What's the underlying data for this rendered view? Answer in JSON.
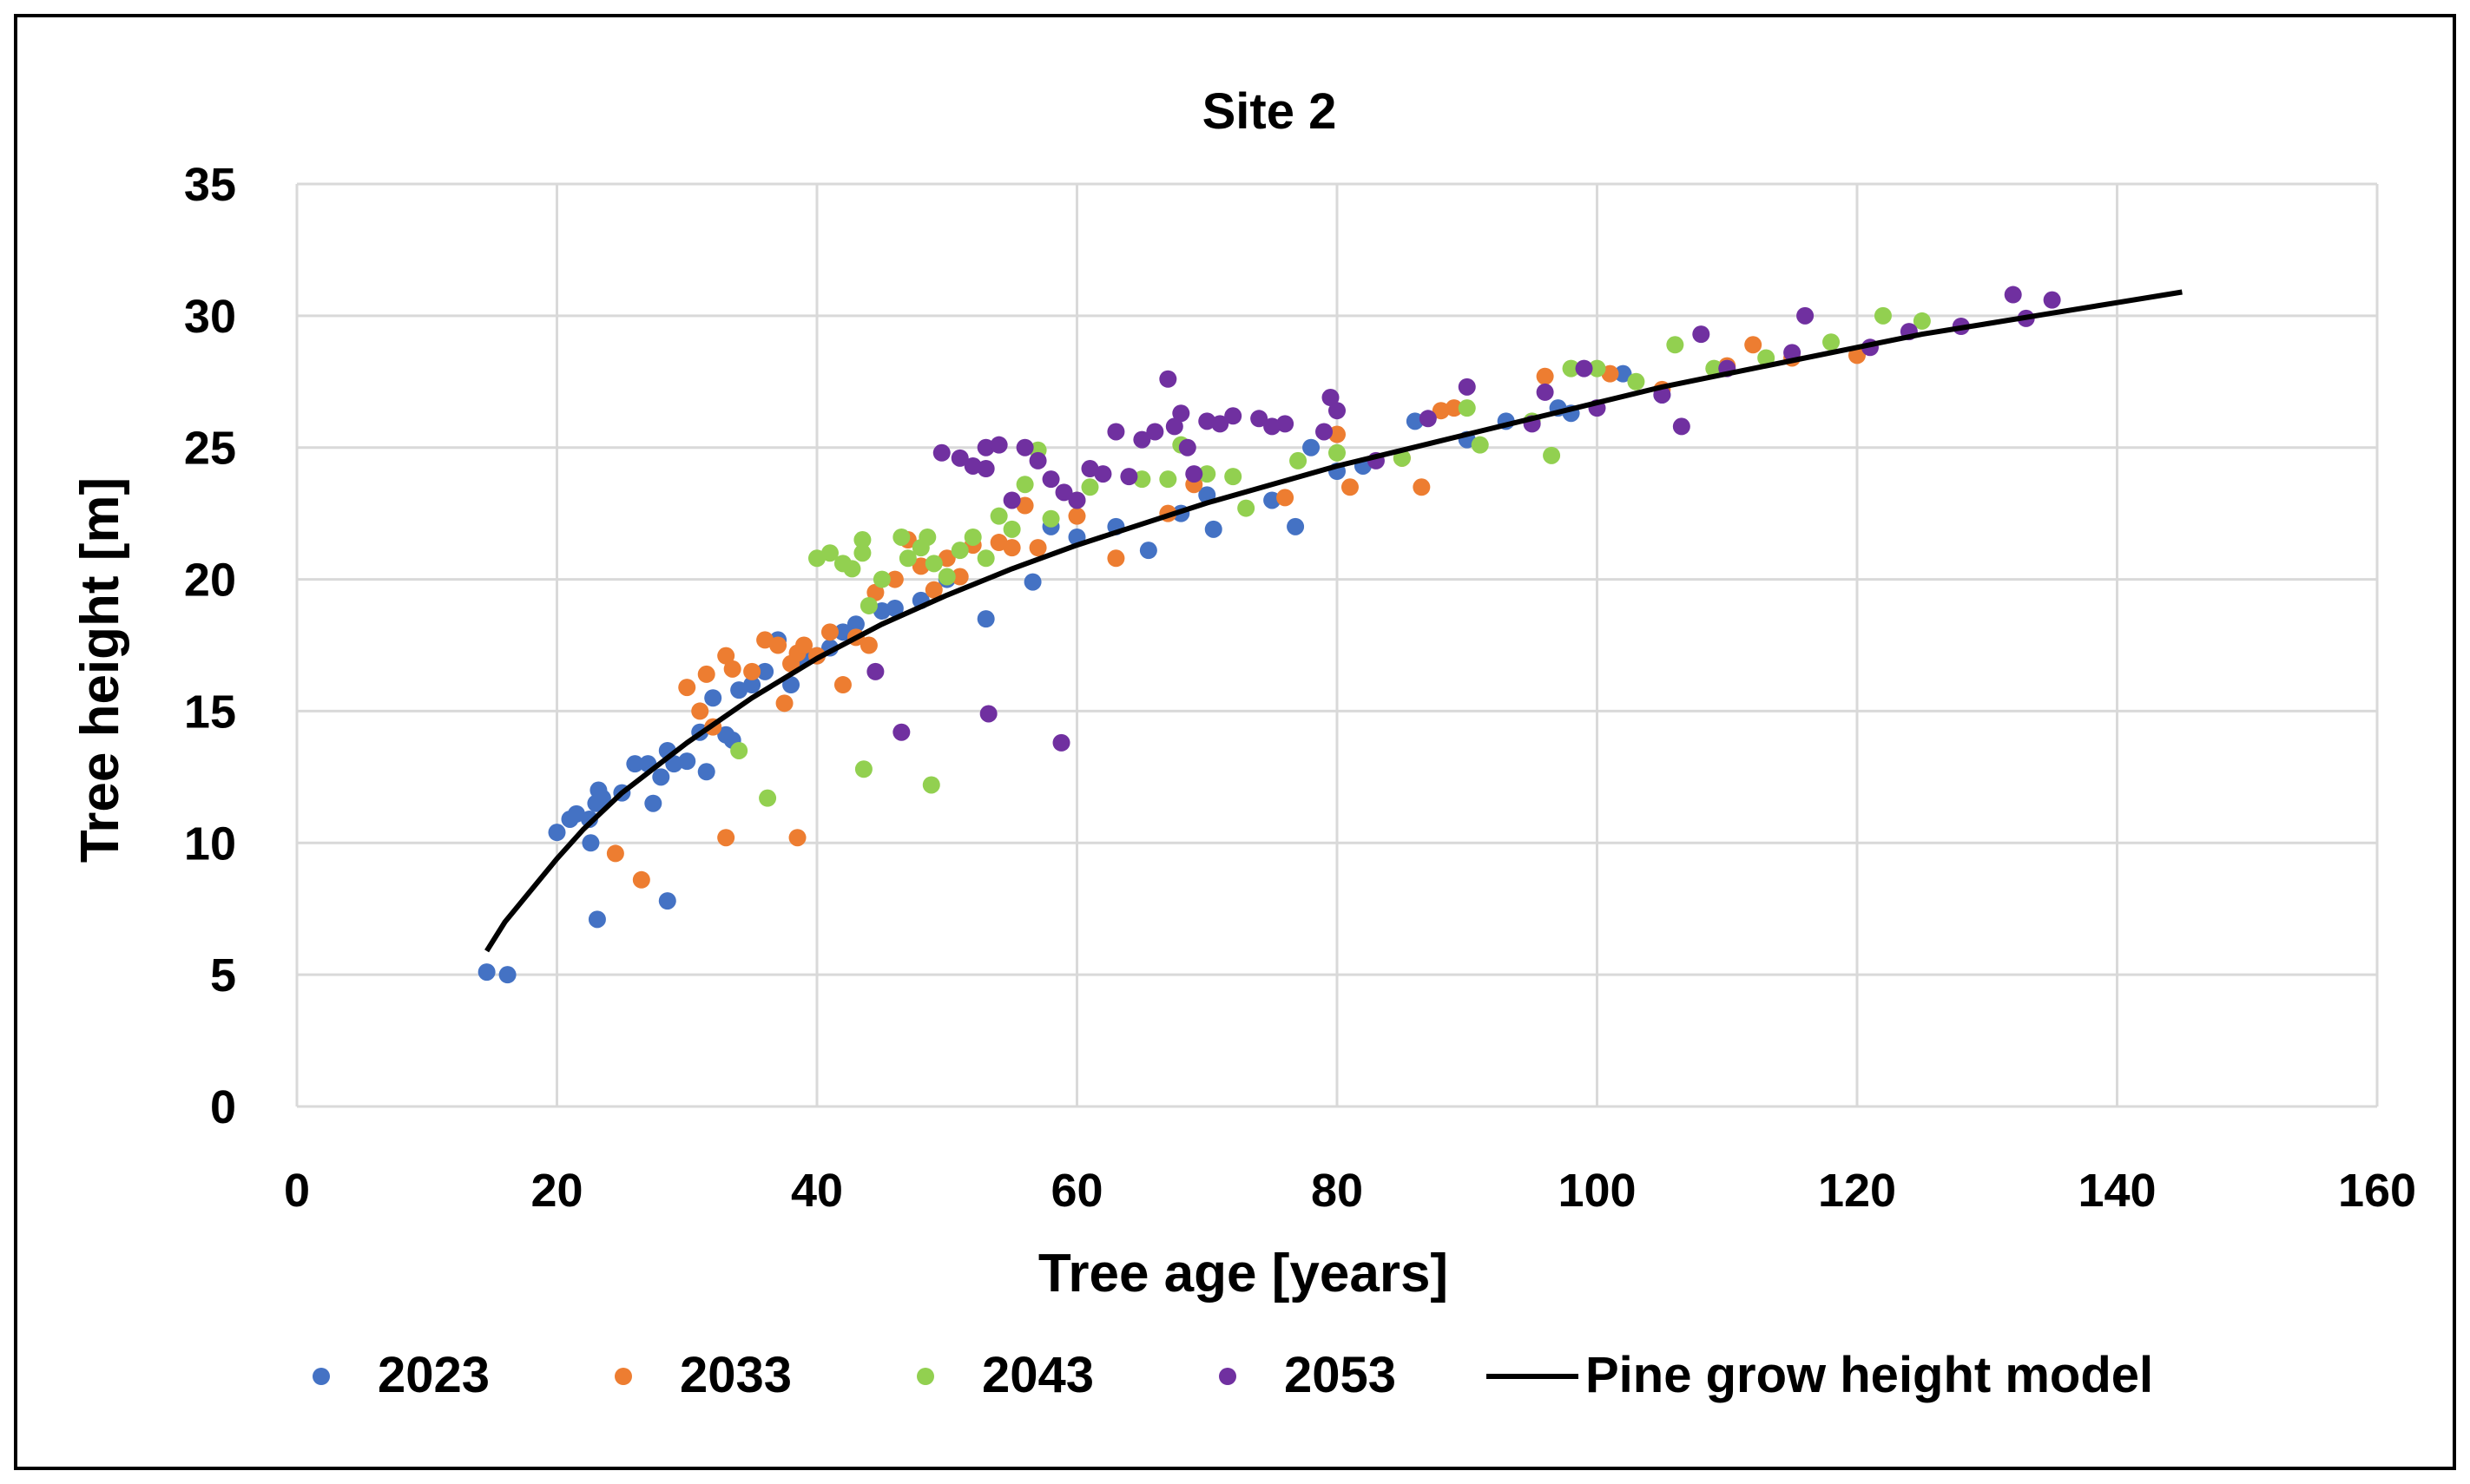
{
  "chart_data": {
    "type": "scatter",
    "title": "Site 2",
    "xlabel": "Tree age [years]",
    "ylabel": "Tree height [m]",
    "xlim": [
      0,
      160
    ],
    "ylim": [
      0,
      35
    ],
    "xticks": [
      "0",
      "20",
      "40",
      "60",
      "80",
      "100",
      "120",
      "140",
      "160"
    ],
    "yticks": [
      "0",
      "5",
      "10",
      "15",
      "20",
      "25",
      "30",
      "35"
    ],
    "grid": true,
    "legend_position": "bottom",
    "series": [
      {
        "name": "2023",
        "color": "#4472C4",
        "points": [
          [
            14.6,
            5.1
          ],
          [
            16.2,
            5.0
          ],
          [
            20,
            10.4
          ],
          [
            21,
            10.9
          ],
          [
            21.5,
            11.1
          ],
          [
            22.5,
            10.9
          ],
          [
            22.6,
            10.0
          ],
          [
            23,
            11.5
          ],
          [
            23.2,
            12.0
          ],
          [
            23.5,
            11.7
          ],
          [
            23.1,
            7.1
          ],
          [
            25,
            11.9
          ],
          [
            26,
            13.0
          ],
          [
            27,
            13.0
          ],
          [
            27.4,
            11.5
          ],
          [
            28,
            12.5
          ],
          [
            28.5,
            13.5
          ],
          [
            29,
            13.0
          ],
          [
            28.5,
            7.8
          ],
          [
            30,
            13.1
          ],
          [
            31,
            14.2
          ],
          [
            31.5,
            12.7
          ],
          [
            32,
            15.5
          ],
          [
            33,
            14.1
          ],
          [
            33.5,
            13.9
          ],
          [
            34,
            15.8
          ],
          [
            35,
            16.0
          ],
          [
            36,
            16.5
          ],
          [
            37,
            17.7
          ],
          [
            38,
            16.0
          ],
          [
            39,
            17.0
          ],
          [
            40,
            17.1
          ],
          [
            41,
            17.4
          ],
          [
            42,
            18.0
          ],
          [
            43,
            18.3
          ],
          [
            45,
            18.8
          ],
          [
            46,
            18.9
          ],
          [
            48,
            19.2
          ],
          [
            50,
            20.0
          ],
          [
            53,
            18.5
          ],
          [
            56.6,
            19.9
          ],
          [
            58,
            22.0
          ],
          [
            60,
            21.6
          ],
          [
            63,
            22.0
          ],
          [
            65.5,
            21.1
          ],
          [
            68,
            22.5
          ],
          [
            70,
            23.2
          ],
          [
            70.5,
            21.9
          ],
          [
            75,
            23.0
          ],
          [
            76.8,
            22.0
          ],
          [
            78,
            25.0
          ],
          [
            80,
            24.1
          ],
          [
            82,
            24.3
          ],
          [
            86,
            26.0
          ],
          [
            90,
            25.3
          ],
          [
            93,
            26.0
          ],
          [
            97,
            26.5
          ],
          [
            98,
            26.3
          ],
          [
            102,
            27.8
          ],
          [
            105,
            27.0
          ]
        ]
      },
      {
        "name": "2033",
        "color": "#ED7D31",
        "points": [
          [
            24.5,
            9.6
          ],
          [
            26.5,
            8.6
          ],
          [
            30,
            15.9
          ],
          [
            31,
            15.0
          ],
          [
            31.5,
            16.4
          ],
          [
            32,
            14.4
          ],
          [
            33,
            17.1
          ],
          [
            33.5,
            16.6
          ],
          [
            33,
            10.2
          ],
          [
            35,
            16.5
          ],
          [
            36,
            17.7
          ],
          [
            37,
            17.5
          ],
          [
            37.5,
            15.3
          ],
          [
            38,
            16.8
          ],
          [
            38.5,
            10.2
          ],
          [
            38.5,
            17.2
          ],
          [
            39,
            17.5
          ],
          [
            40,
            17.1
          ],
          [
            41,
            18.0
          ],
          [
            42,
            16.0
          ],
          [
            43,
            17.8
          ],
          [
            44,
            17.5
          ],
          [
            44.5,
            19.5
          ],
          [
            46,
            20.0
          ],
          [
            47,
            21.5
          ],
          [
            48,
            20.5
          ],
          [
            49,
            19.6
          ],
          [
            50,
            20.8
          ],
          [
            51,
            20.1
          ],
          [
            52,
            21.3
          ],
          [
            54,
            21.4
          ],
          [
            55,
            21.2
          ],
          [
            56,
            22.8
          ],
          [
            57,
            21.2
          ],
          [
            60,
            22.4
          ],
          [
            63,
            20.8
          ],
          [
            67,
            22.5
          ],
          [
            69,
            23.6
          ],
          [
            76,
            23.1
          ],
          [
            80,
            25.5
          ],
          [
            81,
            23.5
          ],
          [
            85,
            24.6
          ],
          [
            86.5,
            23.5
          ],
          [
            88,
            26.4
          ],
          [
            89,
            26.5
          ],
          [
            96,
            27.7
          ],
          [
            101,
            27.8
          ],
          [
            105,
            27.2
          ],
          [
            110,
            28.1
          ],
          [
            112,
            28.9
          ],
          [
            115,
            28.4
          ],
          [
            120,
            28.5
          ]
        ]
      },
      {
        "name": "2043",
        "color": "#92D050",
        "points": [
          [
            34,
            13.5
          ],
          [
            36.2,
            11.7
          ],
          [
            40,
            20.8
          ],
          [
            41,
            21.0
          ],
          [
            42,
            20.6
          ],
          [
            42.7,
            20.4
          ],
          [
            43.5,
            21.0
          ],
          [
            43.5,
            21.5
          ],
          [
            43.6,
            12.8
          ],
          [
            44,
            19.0
          ],
          [
            45,
            20.0
          ],
          [
            46.5,
            21.6
          ],
          [
            47,
            20.8
          ],
          [
            48,
            21.2
          ],
          [
            48.5,
            21.6
          ],
          [
            48.8,
            12.2
          ],
          [
            49,
            20.6
          ],
          [
            50,
            20.1
          ],
          [
            51,
            21.1
          ],
          [
            52,
            21.6
          ],
          [
            53,
            20.8
          ],
          [
            54,
            22.4
          ],
          [
            55,
            21.9
          ],
          [
            56,
            23.6
          ],
          [
            57,
            24.9
          ],
          [
            58,
            22.3
          ],
          [
            60,
            23.0
          ],
          [
            61,
            23.5
          ],
          [
            65,
            23.8
          ],
          [
            67,
            23.8
          ],
          [
            68,
            25.1
          ],
          [
            70,
            24.0
          ],
          [
            72,
            23.9
          ],
          [
            73,
            22.7
          ],
          [
            77,
            24.5
          ],
          [
            80,
            24.8
          ],
          [
            85,
            24.6
          ],
          [
            90,
            26.5
          ],
          [
            91,
            25.1
          ],
          [
            95,
            26.0
          ],
          [
            96.5,
            24.7
          ],
          [
            98,
            28.0
          ],
          [
            100,
            28.0
          ],
          [
            103,
            27.5
          ],
          [
            106,
            28.9
          ],
          [
            109,
            28.0
          ],
          [
            113,
            28.4
          ],
          [
            118,
            29.0
          ],
          [
            122,
            30.0
          ],
          [
            125,
            29.8
          ]
        ]
      },
      {
        "name": "2053",
        "color": "#7030A0",
        "points": [
          [
            44.5,
            16.5
          ],
          [
            46.5,
            14.2
          ],
          [
            49.6,
            24.8
          ],
          [
            51,
            24.6
          ],
          [
            52,
            24.3
          ],
          [
            53,
            25.0
          ],
          [
            53,
            24.2
          ],
          [
            53.2,
            14.9
          ],
          [
            54,
            25.1
          ],
          [
            55,
            23.0
          ],
          [
            56,
            25.0
          ],
          [
            57,
            24.5
          ],
          [
            58,
            23.8
          ],
          [
            58.8,
            13.8
          ],
          [
            59,
            23.3
          ],
          [
            60,
            23.0
          ],
          [
            61,
            24.2
          ],
          [
            62,
            24.0
          ],
          [
            63,
            25.6
          ],
          [
            64,
            23.9
          ],
          [
            65,
            25.3
          ],
          [
            66,
            25.6
          ],
          [
            67,
            27.6
          ],
          [
            67.5,
            25.8
          ],
          [
            68,
            26.3
          ],
          [
            68.5,
            25.0
          ],
          [
            69,
            24.0
          ],
          [
            70,
            26.0
          ],
          [
            71,
            25.9
          ],
          [
            72,
            26.2
          ],
          [
            74,
            26.1
          ],
          [
            75,
            25.8
          ],
          [
            76,
            25.9
          ],
          [
            79,
            25.6
          ],
          [
            79.5,
            26.9
          ],
          [
            80,
            26.4
          ],
          [
            83,
            24.5
          ],
          [
            87,
            26.1
          ],
          [
            90,
            27.3
          ],
          [
            95,
            25.9
          ],
          [
            96,
            27.1
          ],
          [
            99,
            28.0
          ],
          [
            100,
            26.5
          ],
          [
            105,
            27.0
          ],
          [
            106.5,
            25.8
          ],
          [
            108,
            29.3
          ],
          [
            110,
            28.0
          ],
          [
            115,
            28.6
          ],
          [
            116,
            30.0
          ],
          [
            121,
            28.8
          ],
          [
            124,
            29.4
          ],
          [
            128,
            29.6
          ],
          [
            132,
            30.8
          ],
          [
            133,
            29.9
          ],
          [
            135,
            30.6
          ]
        ]
      }
    ],
    "model": {
      "name": "Pine grow height model",
      "color": "#000000",
      "points": [
        [
          14.6,
          5.9
        ],
        [
          16,
          7.0
        ],
        [
          18,
          8.2
        ],
        [
          20,
          9.4
        ],
        [
          22,
          10.5
        ],
        [
          25,
          11.9
        ],
        [
          30,
          13.8
        ],
        [
          35,
          15.5
        ],
        [
          40,
          17.0
        ],
        [
          45,
          18.3
        ],
        [
          50,
          19.4
        ],
        [
          55,
          20.4
        ],
        [
          60,
          21.3
        ],
        [
          65,
          22.1
        ],
        [
          70,
          22.9
        ],
        [
          75,
          23.6
        ],
        [
          80,
          24.3
        ],
        [
          85,
          24.9
        ],
        [
          90,
          25.5
        ],
        [
          95,
          26.1
        ],
        [
          100,
          26.7
        ],
        [
          105,
          27.3
        ],
        [
          110,
          27.8
        ],
        [
          115,
          28.3
        ],
        [
          120,
          28.8
        ],
        [
          125,
          29.3
        ],
        [
          130,
          29.7
        ],
        [
          135,
          30.1
        ],
        [
          140,
          30.5
        ],
        [
          145,
          30.9
        ]
      ]
    }
  }
}
